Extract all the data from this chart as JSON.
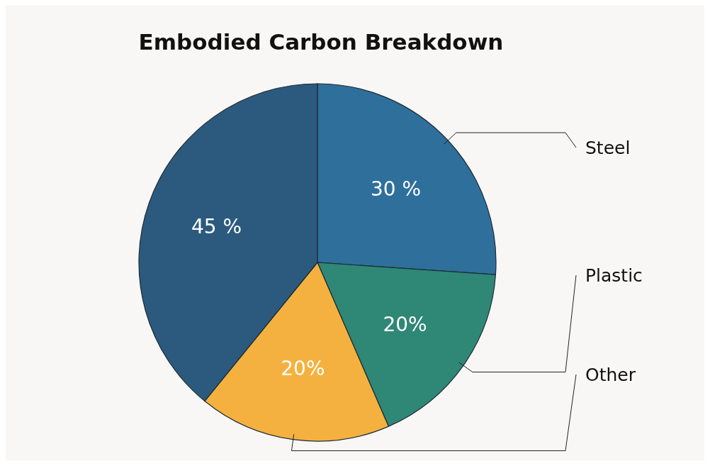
{
  "chart_data": {
    "type": "pie",
    "title": "Embodied Carbon Breakdown",
    "categories": [
      "Steel",
      "Plastic",
      "Other",
      null
    ],
    "values": [
      30,
      20,
      20,
      45
    ],
    "value_labels": [
      "30 %",
      "20%",
      "20%",
      "45 %"
    ],
    "colors": [
      "#2f6f9c",
      "#2f8776",
      "#f5b13f",
      "#2b5a7e"
    ]
  }
}
